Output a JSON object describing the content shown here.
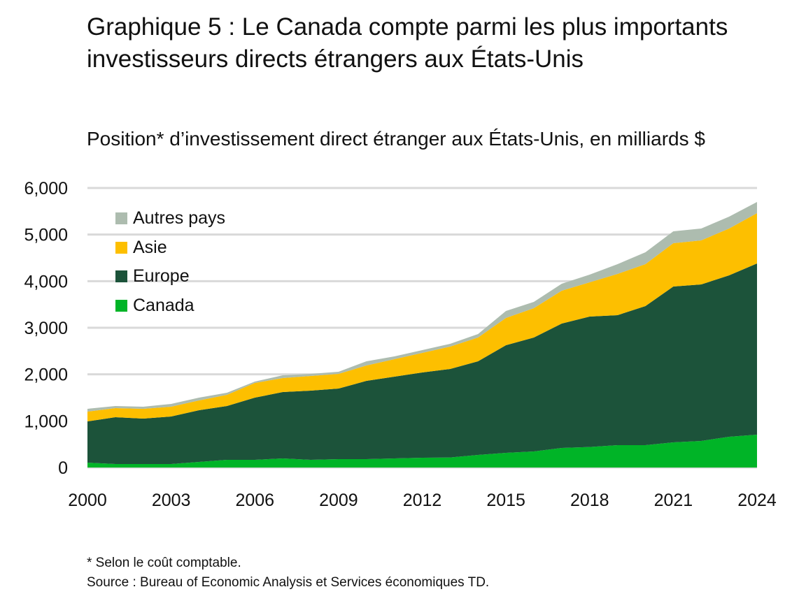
{
  "title": "Graphique 5 : Le Canada compte parmi les plus importants investisseurs directs étrangers aux États-Unis",
  "subtitle": "Position* d’investissement direct étranger aux États-Unis, en milliards $",
  "notes": {
    "footnote": "* Selon le coût comptable.",
    "source": "Source : Bureau of Economic Analysis et Services économiques TD."
  },
  "chart_data": {
    "type": "area",
    "stacked": true,
    "x": [
      2000,
      2001,
      2002,
      2003,
      2004,
      2005,
      2006,
      2007,
      2008,
      2009,
      2010,
      2011,
      2012,
      2013,
      2014,
      2015,
      2016,
      2017,
      2018,
      2019,
      2020,
      2021,
      2022,
      2023,
      2024
    ],
    "x_tick_labels": [
      "2000",
      "2003",
      "2006",
      "2009",
      "2012",
      "2015",
      "2018",
      "2021",
      "2024"
    ],
    "y_tick_labels": [
      "0",
      "1,000",
      "2,000",
      "3,000",
      "4,000",
      "5,000",
      "6,000"
    ],
    "ylim": [
      0,
      6000
    ],
    "grid": true,
    "legend_placement": "top-left",
    "series": [
      {
        "name": "Canada",
        "color": "#00b427",
        "values": [
          105,
          75,
          75,
          75,
          120,
          165,
          165,
          195,
          165,
          180,
          180,
          195,
          210,
          215,
          270,
          315,
          345,
          420,
          440,
          480,
          480,
          540,
          570,
          660,
          705
        ]
      },
      {
        "name": "Europe",
        "color": "#1c533a",
        "values": [
          885,
          1005,
          975,
          1020,
          1110,
          1155,
          1335,
          1425,
          1485,
          1515,
          1680,
          1755,
          1830,
          1900,
          2010,
          2310,
          2445,
          2670,
          2800,
          2790,
          2985,
          3345,
          3360,
          3465,
          3675
        ]
      },
      {
        "name": "Asie",
        "color": "#fdbf00",
        "values": [
          210,
          195,
          210,
          210,
          210,
          240,
          315,
          300,
          315,
          315,
          330,
          375,
          420,
          480,
          510,
          585,
          630,
          705,
          735,
          885,
          900,
          930,
          945,
          1005,
          1080
        ]
      },
      {
        "name": "Autres pays",
        "color": "#adbcaf",
        "values": [
          60,
          45,
          45,
          60,
          60,
          45,
          30,
          60,
          45,
          45,
          90,
          60,
          60,
          60,
          75,
          150,
          135,
          150,
          165,
          210,
          255,
          255,
          255,
          255,
          240
        ]
      }
    ]
  }
}
